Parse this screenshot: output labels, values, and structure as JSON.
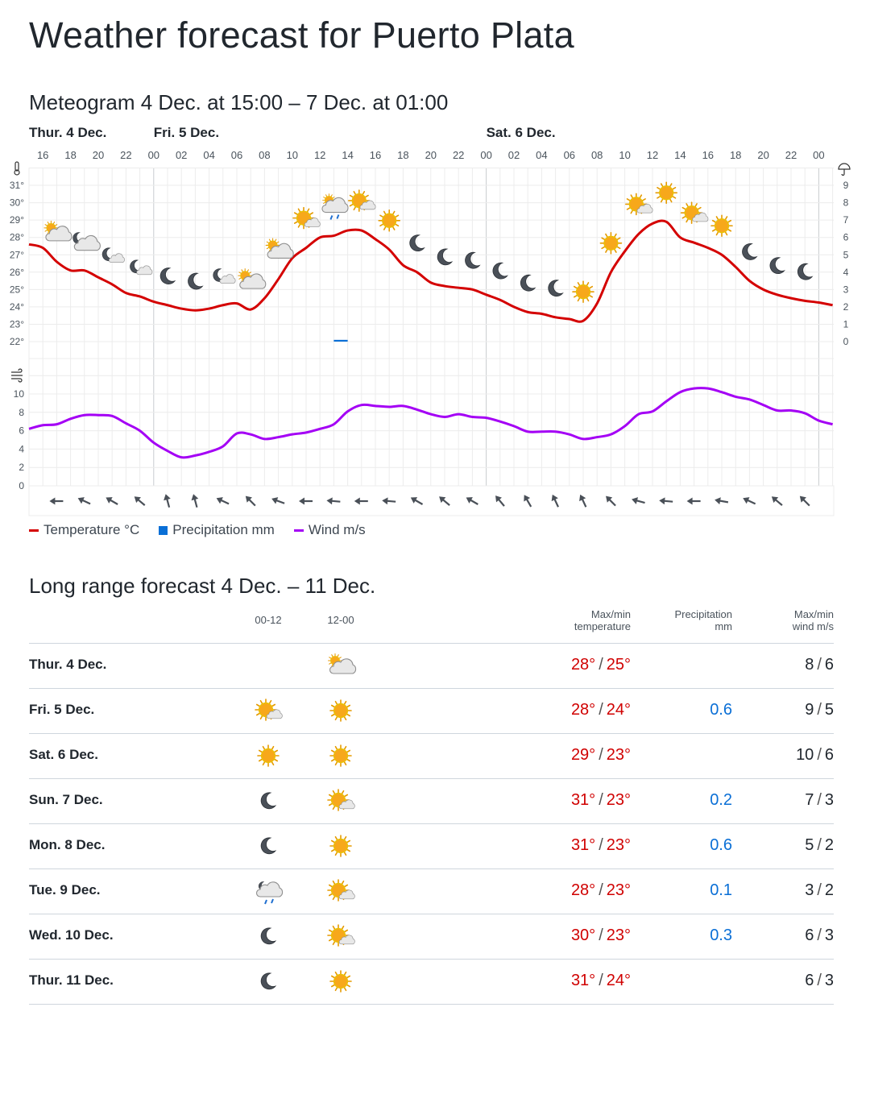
{
  "page_title": "Weather forecast for Puerto Plata",
  "meteogram": {
    "title": "Meteogram 4 Dec. at 15:00 – 7 Dec. at 01:00",
    "legend": [
      {
        "label": "Temperature °C",
        "color": "#d40000",
        "kind": "line"
      },
      {
        "label": "Precipitation mm",
        "color": "#0a6fd6",
        "kind": "box"
      },
      {
        "label": "Wind m/s",
        "color": "#a400f5",
        "kind": "line"
      }
    ],
    "icons": {
      "temperature_axis": "thermometer-icon",
      "precip_axis": "umbrella-icon",
      "wind_axis": "wind-icon"
    }
  },
  "chart_data": {
    "type": "line",
    "start": "4 Dec. 15:00",
    "hours_span": 58,
    "days": [
      {
        "label": "Thur. 4 Dec.",
        "start_hour": 0
      },
      {
        "label": "Fri. 5 Dec.",
        "start_hour": 9
      },
      {
        "label": "Sat. 6 Dec.",
        "start_hour": 33
      }
    ],
    "hour_tick_labels": [
      "16",
      "18",
      "20",
      "22",
      "00",
      "02",
      "04",
      "06",
      "08",
      "10",
      "12",
      "14",
      "16",
      "18",
      "20",
      "22",
      "00",
      "02",
      "04",
      "06",
      "08",
      "10",
      "12",
      "14",
      "16",
      "18",
      "20",
      "22",
      "00"
    ],
    "hour_tick_first": 1,
    "temperature_axis": {
      "min": 22,
      "max": 31,
      "ticks": [
        "22°",
        "23°",
        "24°",
        "25°",
        "26°",
        "27°",
        "28°",
        "29°",
        "30°",
        "31°"
      ]
    },
    "precip_axis": {
      "min": 0,
      "max": 9,
      "ticks": [
        "0",
        "1",
        "2",
        "3",
        "4",
        "5",
        "6",
        "7",
        "8",
        "9"
      ]
    },
    "wind_axis": {
      "min": 0,
      "max": 10,
      "ticks": [
        "0",
        "2",
        "4",
        "6",
        "8",
        "10"
      ]
    },
    "series": [
      {
        "name": "Temperature °C",
        "color": "#d40000",
        "values": [
          27.6,
          27.4,
          26.6,
          26.1,
          26.1,
          25.7,
          25.3,
          24.8,
          24.6,
          24.3,
          24.1,
          23.9,
          23.8,
          23.9,
          24.1,
          24.2,
          23.85,
          24.5,
          25.6,
          26.8,
          27.4,
          28.0,
          28.1,
          28.4,
          28.4,
          27.9,
          27.3,
          26.4,
          26.0,
          25.4,
          25.2,
          25.1,
          25.0,
          24.7,
          24.4,
          24.0,
          23.7,
          23.6,
          23.4,
          23.3,
          23.2,
          24.2,
          26.0,
          27.2,
          28.2,
          28.8,
          28.9,
          28.0,
          27.7,
          27.4,
          27.0,
          26.3,
          25.5,
          25.0,
          24.7,
          24.5,
          24.35,
          24.25,
          24.1
        ]
      },
      {
        "name": "Wind m/s",
        "color": "#a400f5",
        "values": [
          6.2,
          6.6,
          6.7,
          7.3,
          7.7,
          7.7,
          7.6,
          6.8,
          6.0,
          4.7,
          3.8,
          3.1,
          3.3,
          3.7,
          4.3,
          5.7,
          5.6,
          5.1,
          5.3,
          5.6,
          5.8,
          6.2,
          6.7,
          8.1,
          8.8,
          8.7,
          8.6,
          8.7,
          8.3,
          7.8,
          7.5,
          7.8,
          7.5,
          7.4,
          7.0,
          6.5,
          5.9,
          5.9,
          5.9,
          5.6,
          5.1,
          5.3,
          5.6,
          6.5,
          7.8,
          8.1,
          9.2,
          10.2,
          10.6,
          10.6,
          10.2,
          9.7,
          9.4,
          8.8,
          8.2,
          8.2,
          7.9,
          7.1,
          6.7
        ]
      }
    ],
    "precipitation": [
      {
        "hour": 22,
        "value": 0.1,
        "color": "#0a6fd6"
      }
    ],
    "symbols": [
      {
        "hour": 2,
        "type": "partly-cloudy-day"
      },
      {
        "hour": 4,
        "type": "partly-cloudy-night"
      },
      {
        "hour": 6,
        "type": "fair-night"
      },
      {
        "hour": 8,
        "type": "fair-night"
      },
      {
        "hour": 10,
        "type": "moon"
      },
      {
        "hour": 12,
        "type": "moon"
      },
      {
        "hour": 14,
        "type": "fair-night"
      },
      {
        "hour": 16,
        "type": "partly-cloudy-day"
      },
      {
        "hour": 18,
        "type": "partly-cloudy-day"
      },
      {
        "hour": 20,
        "type": "fair-day"
      },
      {
        "hour": 22,
        "type": "rain-day"
      },
      {
        "hour": 24,
        "type": "fair-day"
      },
      {
        "hour": 26,
        "type": "sun"
      },
      {
        "hour": 28,
        "type": "moon"
      },
      {
        "hour": 30,
        "type": "moon"
      },
      {
        "hour": 32,
        "type": "moon"
      },
      {
        "hour": 34,
        "type": "moon"
      },
      {
        "hour": 36,
        "type": "moon"
      },
      {
        "hour": 38,
        "type": "moon"
      },
      {
        "hour": 40,
        "type": "sun"
      },
      {
        "hour": 42,
        "type": "sun"
      },
      {
        "hour": 44,
        "type": "fair-day"
      },
      {
        "hour": 46,
        "type": "sun"
      },
      {
        "hour": 48,
        "type": "fair-day"
      },
      {
        "hour": 50,
        "type": "sun"
      },
      {
        "hour": 52,
        "type": "moon"
      },
      {
        "hour": 54,
        "type": "moon"
      },
      {
        "hour": 56,
        "type": "moon"
      }
    ],
    "wind_directions": {
      "first_hour": 2,
      "step": 2,
      "pointing_deg": [
        270,
        295,
        300,
        310,
        345,
        345,
        295,
        315,
        290,
        270,
        275,
        270,
        275,
        300,
        310,
        300,
        320,
        330,
        335,
        335,
        315,
        285,
        275,
        270,
        280,
        295,
        310,
        315
      ]
    }
  },
  "long_range": {
    "title": "Long range forecast 4 Dec. – 11 Dec.",
    "headers": {
      "period1": "00-12",
      "period2": "12-00",
      "temp_line1": "Max/min",
      "temp_line2": "temperature",
      "precip_line1": "Precipitation",
      "precip_line2": "mm",
      "wind_line1": "Max/min",
      "wind_line2": "wind m/s"
    },
    "rows": [
      {
        "day": "Thur. 4 Dec.",
        "icon1": "",
        "icon2": "partly-cloudy-day",
        "tmax": "28°",
        "tmin": "25°",
        "precip": "",
        "wmax": "8",
        "wmin": "6"
      },
      {
        "day": "Fri. 5 Dec.",
        "icon1": "fair-day",
        "icon2": "sun",
        "tmax": "28°",
        "tmin": "24°",
        "precip": "0.6",
        "wmax": "9",
        "wmin": "5"
      },
      {
        "day": "Sat. 6 Dec.",
        "icon1": "sun",
        "icon2": "sun",
        "tmax": "29°",
        "tmin": "23°",
        "precip": "",
        "wmax": "10",
        "wmin": "6"
      },
      {
        "day": "Sun. 7 Dec.",
        "icon1": "moon",
        "icon2": "fair-day",
        "tmax": "31°",
        "tmin": "23°",
        "precip": "0.2",
        "wmax": "7",
        "wmin": "3"
      },
      {
        "day": "Mon. 8 Dec.",
        "icon1": "moon",
        "icon2": "sun",
        "tmax": "31°",
        "tmin": "23°",
        "precip": "0.6",
        "wmax": "5",
        "wmin": "2"
      },
      {
        "day": "Tue. 9 Dec.",
        "icon1": "rain-night",
        "icon2": "fair-day",
        "tmax": "28°",
        "tmin": "23°",
        "precip": "0.1",
        "wmax": "3",
        "wmin": "2"
      },
      {
        "day": "Wed. 10 Dec.",
        "icon1": "moon",
        "icon2": "fair-day",
        "tmax": "30°",
        "tmin": "23°",
        "precip": "0.3",
        "wmax": "6",
        "wmin": "3"
      },
      {
        "day": "Thur. 11 Dec.",
        "icon1": "moon",
        "icon2": "sun",
        "tmax": "31°",
        "tmin": "24°",
        "precip": "",
        "wmax": "6",
        "wmin": "3"
      }
    ]
  }
}
